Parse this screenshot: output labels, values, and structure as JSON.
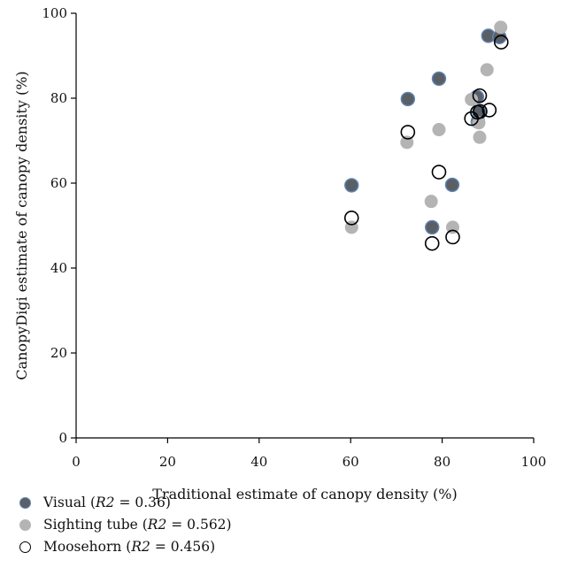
{
  "chart_data": {
    "type": "scatter",
    "title": "",
    "xlabel": "Traditional estimate of canopy density (%)",
    "ylabel": "CanopyDigi estimate of canopy density (%)",
    "xlim": [
      0,
      100
    ],
    "ylim": [
      0,
      100
    ],
    "x_ticks": [
      "0",
      "20",
      "40",
      "60",
      "80",
      "100"
    ],
    "y_ticks": [
      "0",
      "20",
      "40",
      "60",
      "80",
      "100"
    ],
    "grid": false,
    "legend_position": "bottom-left",
    "series": [
      {
        "name": "Visual (R2 = 0.36)",
        "legend": {
          "prefix": "Visual (",
          "italic": "R2",
          "suffix": " = 0.36)"
        },
        "marker": "filled-dark-blue-edge",
        "color": "#5a5f66",
        "edge_color": "#5f86b5",
        "points": [
          [
            60.2,
            59.5
          ],
          [
            72.5,
            79.8
          ],
          [
            79.3,
            84.6
          ],
          [
            77.8,
            49.6
          ],
          [
            82.2,
            59.6
          ],
          [
            87.8,
            74.5
          ],
          [
            88.1,
            76.7
          ],
          [
            87.6,
            80.3
          ],
          [
            90.1,
            94.7
          ],
          [
            92.5,
            94.4
          ]
        ]
      },
      {
        "name": "Sighting tube (R2 = 0.562)",
        "legend": {
          "prefix": "Sighting tube (",
          "italic": "R2",
          "suffix": " = 0.562)"
        },
        "marker": "filled-gray",
        "color": "#b4b4b4",
        "points": [
          [
            60.2,
            49.6
          ],
          [
            72.3,
            69.6
          ],
          [
            79.3,
            72.6
          ],
          [
            77.6,
            55.7
          ],
          [
            82.3,
            49.6
          ],
          [
            86.4,
            79.7
          ],
          [
            88.2,
            70.8
          ],
          [
            88.0,
            74.2
          ],
          [
            89.8,
            86.7
          ],
          [
            92.8,
            96.7
          ]
        ]
      },
      {
        "name": "Moosehorn (R2 = 0.456)",
        "legend": {
          "prefix": "Moosehorn (",
          "italic": "R2",
          "suffix": " = 0.456)"
        },
        "marker": "open-circle",
        "color": "#000000",
        "points": [
          [
            60.2,
            51.8
          ],
          [
            72.5,
            72.0
          ],
          [
            79.3,
            62.6
          ],
          [
            77.8,
            45.8
          ],
          [
            82.3,
            47.3
          ],
          [
            86.4,
            75.2
          ],
          [
            87.7,
            76.7
          ],
          [
            88.3,
            76.9
          ],
          [
            88.2,
            80.6
          ],
          [
            90.3,
            77.2
          ],
          [
            92.9,
            93.2
          ]
        ]
      }
    ]
  }
}
